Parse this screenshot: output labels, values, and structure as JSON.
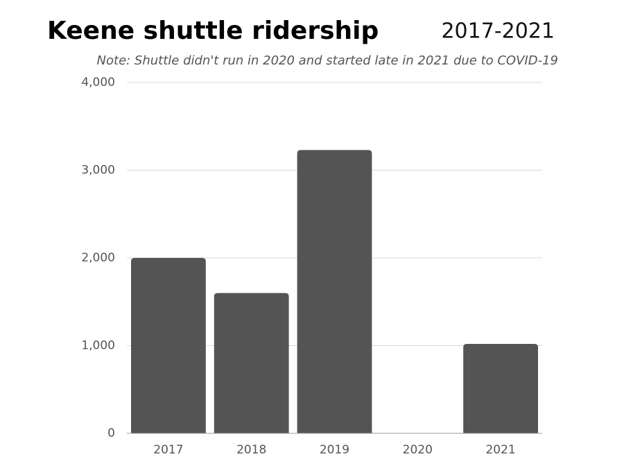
{
  "chart_data": {
    "type": "bar",
    "title": "Keene shuttle ridership",
    "subtitle": "2017-2021",
    "note": "Note: Shuttle didn't run in 2020 and started late in 2021 due to COVID-19",
    "categories": [
      "2017",
      "2018",
      "2019",
      "2020",
      "2021"
    ],
    "values": [
      2000,
      1600,
      3230,
      0,
      1020
    ],
    "color": "#545454",
    "ylim": [
      0,
      4000
    ],
    "yticks": [
      0,
      {
        "value": 1000,
        "label": "1,000"
      },
      {
        "value": 2000,
        "label": "2,000"
      },
      {
        "value": 3000,
        "label": "3,000"
      },
      {
        "value": 4000,
        "label": "4,000"
      }
    ],
    "grid": true
  }
}
